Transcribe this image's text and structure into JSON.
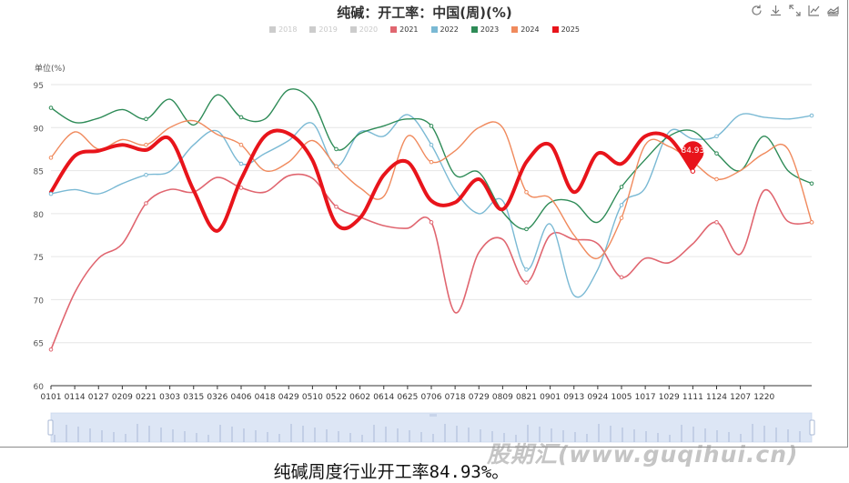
{
  "header": {
    "title": "纯碱：开工率：中国(周)(%)",
    "tools": [
      "refresh-icon",
      "download-icon",
      "fullscreen-icon",
      "line-mode-icon",
      "area-mode-icon"
    ]
  },
  "footer": {
    "caption": "纯碱周度行业开工率84.93%。",
    "watermark": "股期汇(www.guqihui.cn)"
  },
  "chart_data": {
    "type": "line",
    "title": "纯碱：开工率：中国(周)(%)",
    "ylabel": "单位(%)",
    "ylim": [
      60,
      95
    ],
    "yticks": [
      60,
      65,
      70,
      75,
      80,
      85,
      90,
      95
    ],
    "grid": true,
    "legend_position": "top-center",
    "xtick_labels": [
      "0101",
      "0114",
      "0127",
      "0209",
      "0221",
      "0303",
      "0315",
      "0326",
      "0406",
      "0418",
      "0429",
      "0510",
      "0522",
      "0602",
      "0614",
      "0625",
      "0706",
      "0718",
      "0729",
      "0809",
      "0821",
      "0901",
      "0913",
      "0924",
      "1005",
      "1017",
      "1029",
      "1111",
      "1124",
      "1207",
      "1220"
    ],
    "legend": [
      {
        "name": "2018",
        "color": "#cccccc",
        "visible": false
      },
      {
        "name": "2019",
        "color": "#cccccc",
        "visible": false
      },
      {
        "name": "2020",
        "color": "#cccccc",
        "visible": false
      },
      {
        "name": "2021",
        "color": "#e06670",
        "visible": true
      },
      {
        "name": "2022",
        "color": "#7ab9d4",
        "visible": true
      },
      {
        "name": "2023",
        "color": "#2e8b57",
        "visible": true
      },
      {
        "name": "2024",
        "color": "#f08a5d",
        "visible": true
      },
      {
        "name": "2025",
        "color": "#e8141b",
        "visible": true
      }
    ],
    "series": [
      {
        "name": "2021",
        "color": "#e06670",
        "width": 1.6,
        "values": [
          64.2,
          70.8,
          74.8,
          76.5,
          81.2,
          82.8,
          82.5,
          84.2,
          83.0,
          82.5,
          84.4,
          84.1,
          80.8,
          79.6,
          78.6,
          78.3,
          79.0,
          68.5,
          75.5,
          77.0,
          72.0,
          77.5,
          77.0,
          76.5,
          72.6,
          74.8,
          74.3,
          76.5,
          79.0,
          75.3,
          82.7,
          79.1,
          79.0
        ]
      },
      {
        "name": "2022",
        "color": "#7ab9d4",
        "width": 1.4,
        "values": [
          82.3,
          82.8,
          82.3,
          83.5,
          84.5,
          84.9,
          88.0,
          89.6,
          85.8,
          87.0,
          88.5,
          90.5,
          85.5,
          89.5,
          89.0,
          91.5,
          88.0,
          82.7,
          80.0,
          81.5,
          73.5,
          78.8,
          70.5,
          73.5,
          81.0,
          83.0,
          89.5,
          88.7,
          89.0,
          91.5,
          91.2,
          91.0,
          91.4
        ]
      },
      {
        "name": "2023",
        "color": "#2e8b57",
        "width": 1.4,
        "values": [
          92.3,
          90.6,
          91.1,
          92.1,
          91.0,
          93.3,
          90.3,
          93.8,
          91.2,
          91.0,
          94.4,
          93.0,
          87.5,
          89.3,
          90.2,
          91.0,
          90.2,
          84.5,
          84.8,
          80.2,
          78.2,
          81.3,
          81.3,
          79.0,
          83.1,
          86.3,
          89.0,
          89.6,
          87.0,
          85.0,
          89.0,
          85.0,
          83.5
        ]
      },
      {
        "name": "2024",
        "color": "#f08a5d",
        "width": 1.4,
        "values": [
          86.5,
          89.5,
          87.5,
          88.6,
          88.0,
          90.0,
          90.8,
          89.2,
          88.0,
          85.0,
          86.0,
          88.5,
          85.5,
          83.0,
          82.0,
          89.0,
          86.0,
          87.3,
          90.0,
          90.0,
          82.5,
          81.8,
          77.5,
          74.8,
          79.5,
          88.0,
          87.8,
          86.0,
          84.0,
          85.0,
          87.0,
          87.5,
          79.0
        ]
      },
      {
        "name": "2025",
        "color": "#e8141b",
        "width": 4,
        "values": [
          82.5,
          86.7,
          87.3,
          88.0,
          87.4,
          88.7,
          82.7,
          78.0,
          84.0,
          89.0,
          89.3,
          86.2,
          78.8,
          79.5,
          84.5,
          86.0,
          81.5,
          81.3,
          84.0,
          80.5,
          86.0,
          88.0,
          82.5,
          87.0,
          85.8,
          89.0,
          88.8,
          84.93
        ],
        "highlight": {
          "index": 27,
          "label": "84.93"
        }
      }
    ]
  }
}
